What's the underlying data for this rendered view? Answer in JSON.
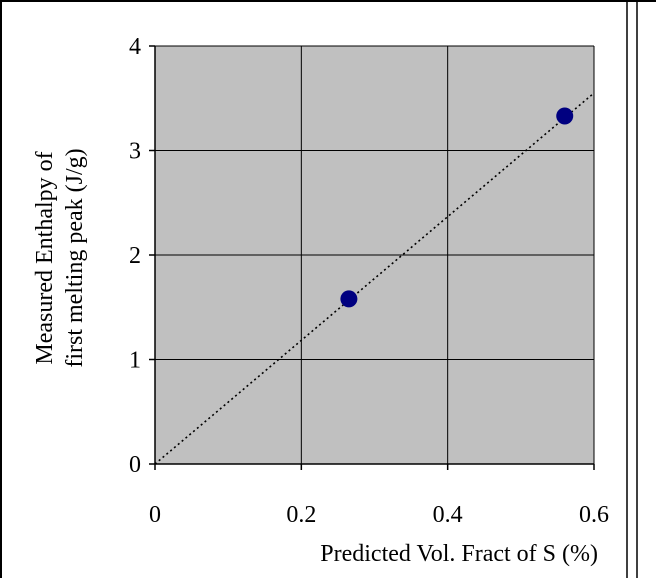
{
  "chart_data": {
    "type": "scatter",
    "title": "",
    "xlabel": "Predicted Vol. Fract of S (%)",
    "ylabel_lines": [
      "Measured Enthalpy of",
      "first melting peak (J/g)"
    ],
    "xlim": [
      0,
      0.6
    ],
    "ylim": [
      0,
      4
    ],
    "x_ticks": [
      0,
      0.2,
      0.4,
      0.6
    ],
    "x_tick_labels": [
      "0",
      "0.2",
      "0.4",
      "0.6"
    ],
    "y_ticks": [
      0,
      1,
      2,
      3,
      4
    ],
    "y_tick_labels": [
      "0",
      "1",
      "2",
      "3",
      "4"
    ],
    "grid": true,
    "legend": "none",
    "series": [
      {
        "x": [
          0.265,
          0.56
        ],
        "y": [
          1.58,
          3.33
        ],
        "marker": "circle",
        "color": "#000080"
      }
    ],
    "trendline": {
      "style": "dotted",
      "color": "#000000",
      "x": [
        0,
        0.6
      ],
      "y": [
        0,
        3.55
      ]
    },
    "plot_background": "#c0c0c0",
    "grid_color": "#000000"
  }
}
